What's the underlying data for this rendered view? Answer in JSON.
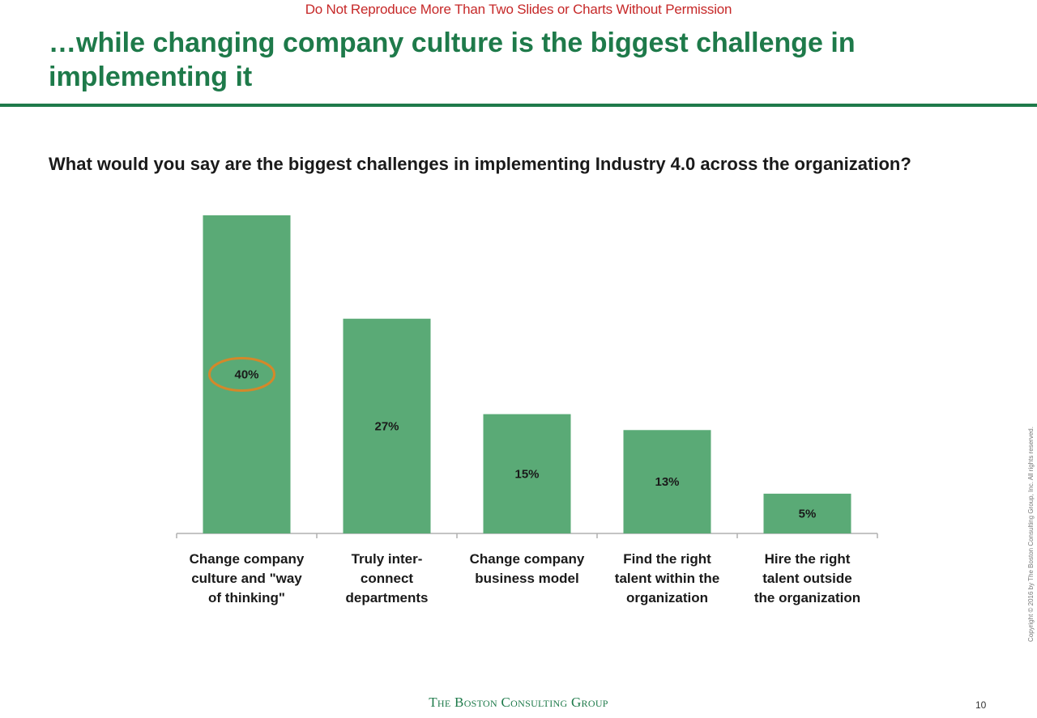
{
  "notice": "Do Not Reproduce More Than Two Slides or Charts Without Permission",
  "title": "…while changing company culture is the biggest challenge in implementing it",
  "question": "What would you say are the biggest challenges in implementing Industry 4.0 across the organization?",
  "footer": {
    "logo_text": "The Boston Consulting Group",
    "page_number": "10",
    "copyright": "Copyright © 2016 by The Boston Consulting Group, Inc. All rights reserved."
  },
  "colors": {
    "accent": "#1e7a4a",
    "bar": "#5aaa76",
    "highlight": "#d4882a",
    "notice": "#c62828"
  },
  "chart_data": {
    "type": "bar",
    "categories": [
      "Change company culture and \"way of thinking\"",
      "Truly inter-connect departments",
      "Change company business model",
      "Find the right talent within the organization",
      "Hire the right talent outside the organization"
    ],
    "category_lines": [
      [
        "Change company",
        "culture and \"way",
        "of thinking\""
      ],
      [
        "Truly inter-",
        "connect",
        "departments"
      ],
      [
        "Change company",
        "business model"
      ],
      [
        "Find the right",
        "talent within the",
        "organization"
      ],
      [
        "Hire the right",
        "talent outside",
        "the organization"
      ]
    ],
    "values": [
      40,
      27,
      15,
      13,
      5
    ],
    "value_labels": [
      "40%",
      "27%",
      "15%",
      "13%",
      "5%"
    ],
    "highlighted_index": 0,
    "ylim": [
      0,
      40
    ],
    "grid": false,
    "legend": "none"
  }
}
